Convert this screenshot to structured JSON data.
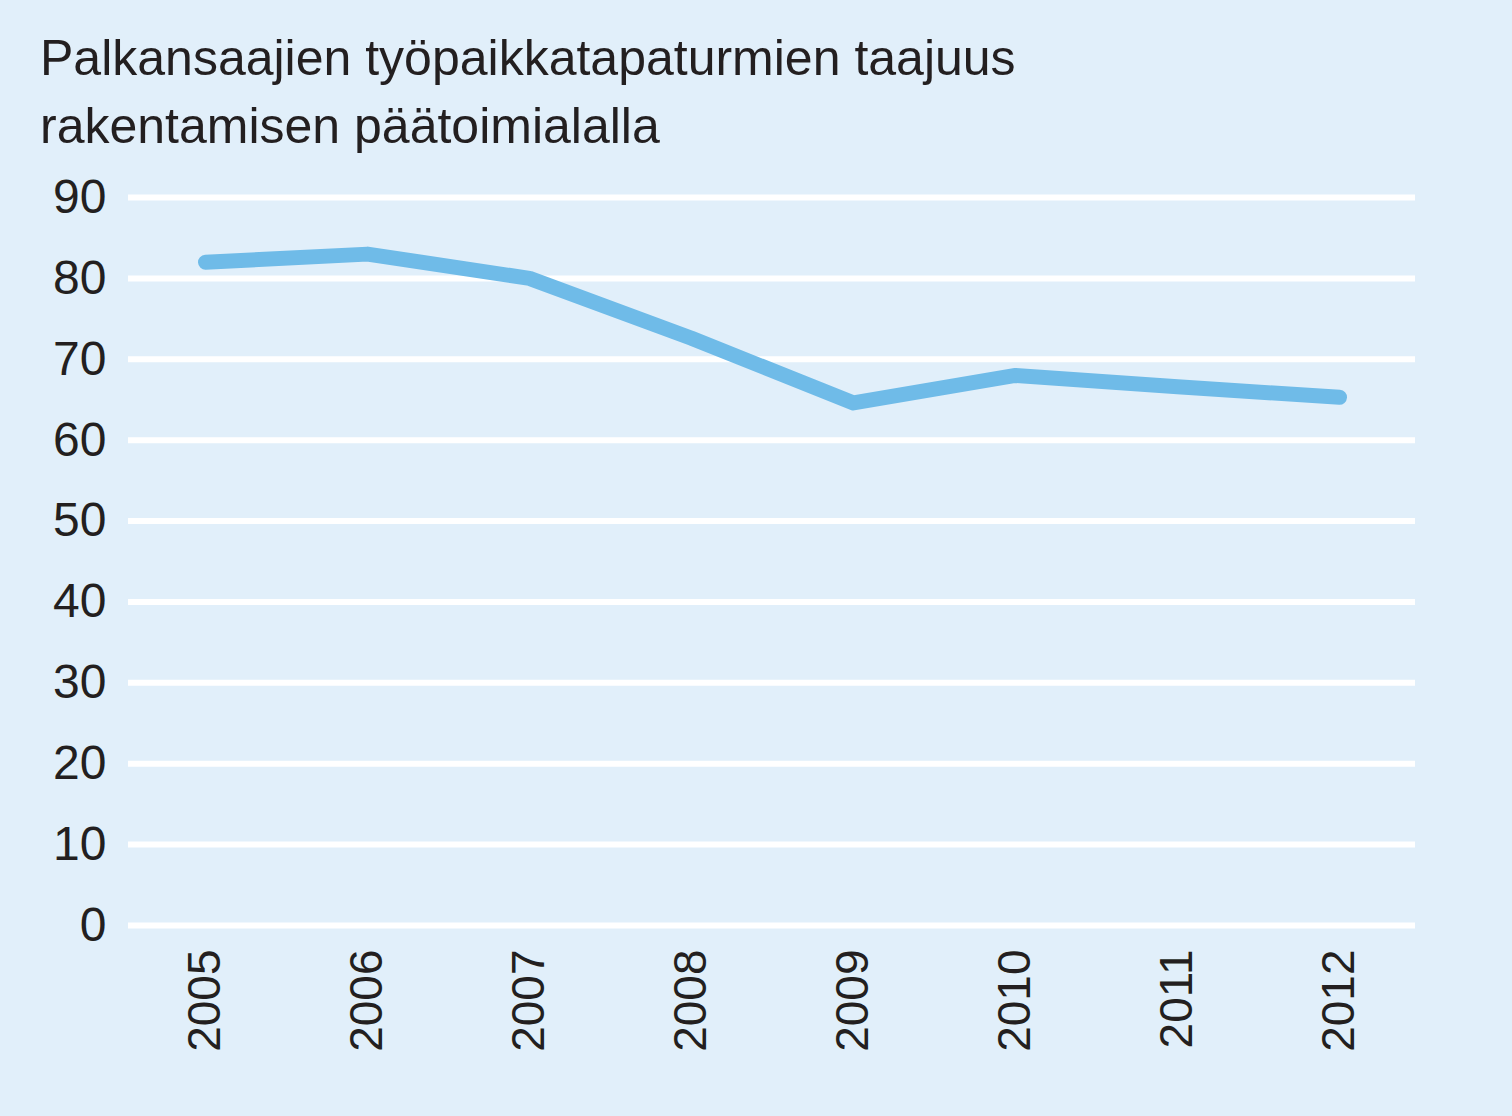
{
  "chart_data": {
    "type": "line",
    "title": "Palkansaajien työpaikkatapaturmien taajuus rakentamisen päätoimialalla",
    "categories": [
      "2005",
      "2006",
      "2007",
      "2008",
      "2009",
      "2010",
      "2011",
      "2012"
    ],
    "values": [
      82,
      83,
      80,
      72.6,
      64.6,
      68,
      66.6,
      65.3
    ],
    "color": "#6fbbe8",
    "ylim": [
      0,
      90
    ],
    "yticks": [
      0,
      10,
      20,
      30,
      40,
      50,
      60,
      70,
      80,
      90
    ],
    "grid": true
  }
}
